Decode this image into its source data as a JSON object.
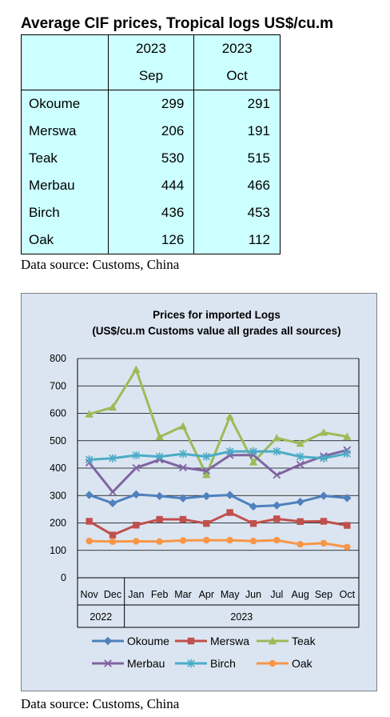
{
  "table": {
    "title": "Average CIF prices, Tropical logs US$/cu.m",
    "header_year": [
      "2023",
      "2023"
    ],
    "header_month": [
      "Sep",
      "Oct"
    ],
    "rows": [
      {
        "name": "Okoume",
        "sep": "299",
        "oct": "291"
      },
      {
        "name": "Merswa",
        "sep": "206",
        "oct": "191"
      },
      {
        "name": "Teak",
        "sep": "530",
        "oct": "515"
      },
      {
        "name": "Merbau",
        "sep": "444",
        "oct": "466"
      },
      {
        "name": "Birch",
        "sep": "436",
        "oct": "453"
      },
      {
        "name": "Oak",
        "sep": "126",
        "oct": "112"
      }
    ],
    "source": "Data source: Customs, China"
  },
  "chart_source": "Data source: Customs, China",
  "chart_data": {
    "type": "line",
    "title": "Prices for imported Logs",
    "subtitle": "(US$/cu.m Customs value all grades all sources)",
    "categories": [
      "Nov",
      "Dec",
      "Jan",
      "Feb",
      "Mar",
      "Apr",
      "May",
      "Jun",
      "Jul",
      "Aug",
      "Sep",
      "Oct"
    ],
    "year_groups": [
      {
        "label": "2022",
        "span": 2
      },
      {
        "label": "2023",
        "span": 10
      }
    ],
    "ylim": [
      0,
      800
    ],
    "yticks": [
      0,
      100,
      200,
      300,
      400,
      500,
      600,
      700,
      800
    ],
    "grid": true,
    "legend_position": "bottom",
    "series": [
      {
        "name": "Okoume",
        "color": "#4f81bd",
        "marker": "diamond",
        "values": [
          302,
          272,
          304,
          298,
          290,
          298,
          302,
          260,
          264,
          277,
          299,
          291
        ]
      },
      {
        "name": "Merswa",
        "color": "#c0504d",
        "marker": "square",
        "values": [
          206,
          156,
          192,
          213,
          213,
          198,
          238,
          198,
          215,
          205,
          206,
          191
        ]
      },
      {
        "name": "Teak",
        "color": "#9bbb59",
        "marker": "triangle",
        "values": [
          597,
          622,
          760,
          514,
          553,
          376,
          588,
          422,
          510,
          490,
          530,
          515
        ]
      },
      {
        "name": "Merbau",
        "color": "#8064a2",
        "marker": "x",
        "values": [
          420,
          313,
          401,
          431,
          402,
          390,
          447,
          448,
          375,
          413,
          444,
          466
        ]
      },
      {
        "name": "Birch",
        "color": "#4bacc6",
        "marker": "star",
        "values": [
          431,
          436,
          447,
          442,
          452,
          442,
          461,
          461,
          461,
          442,
          436,
          453
        ]
      },
      {
        "name": "Oak",
        "color": "#f79646",
        "marker": "circle",
        "values": [
          134,
          132,
          133,
          132,
          136,
          137,
          137,
          134,
          137,
          122,
          126,
          112
        ]
      }
    ]
  }
}
